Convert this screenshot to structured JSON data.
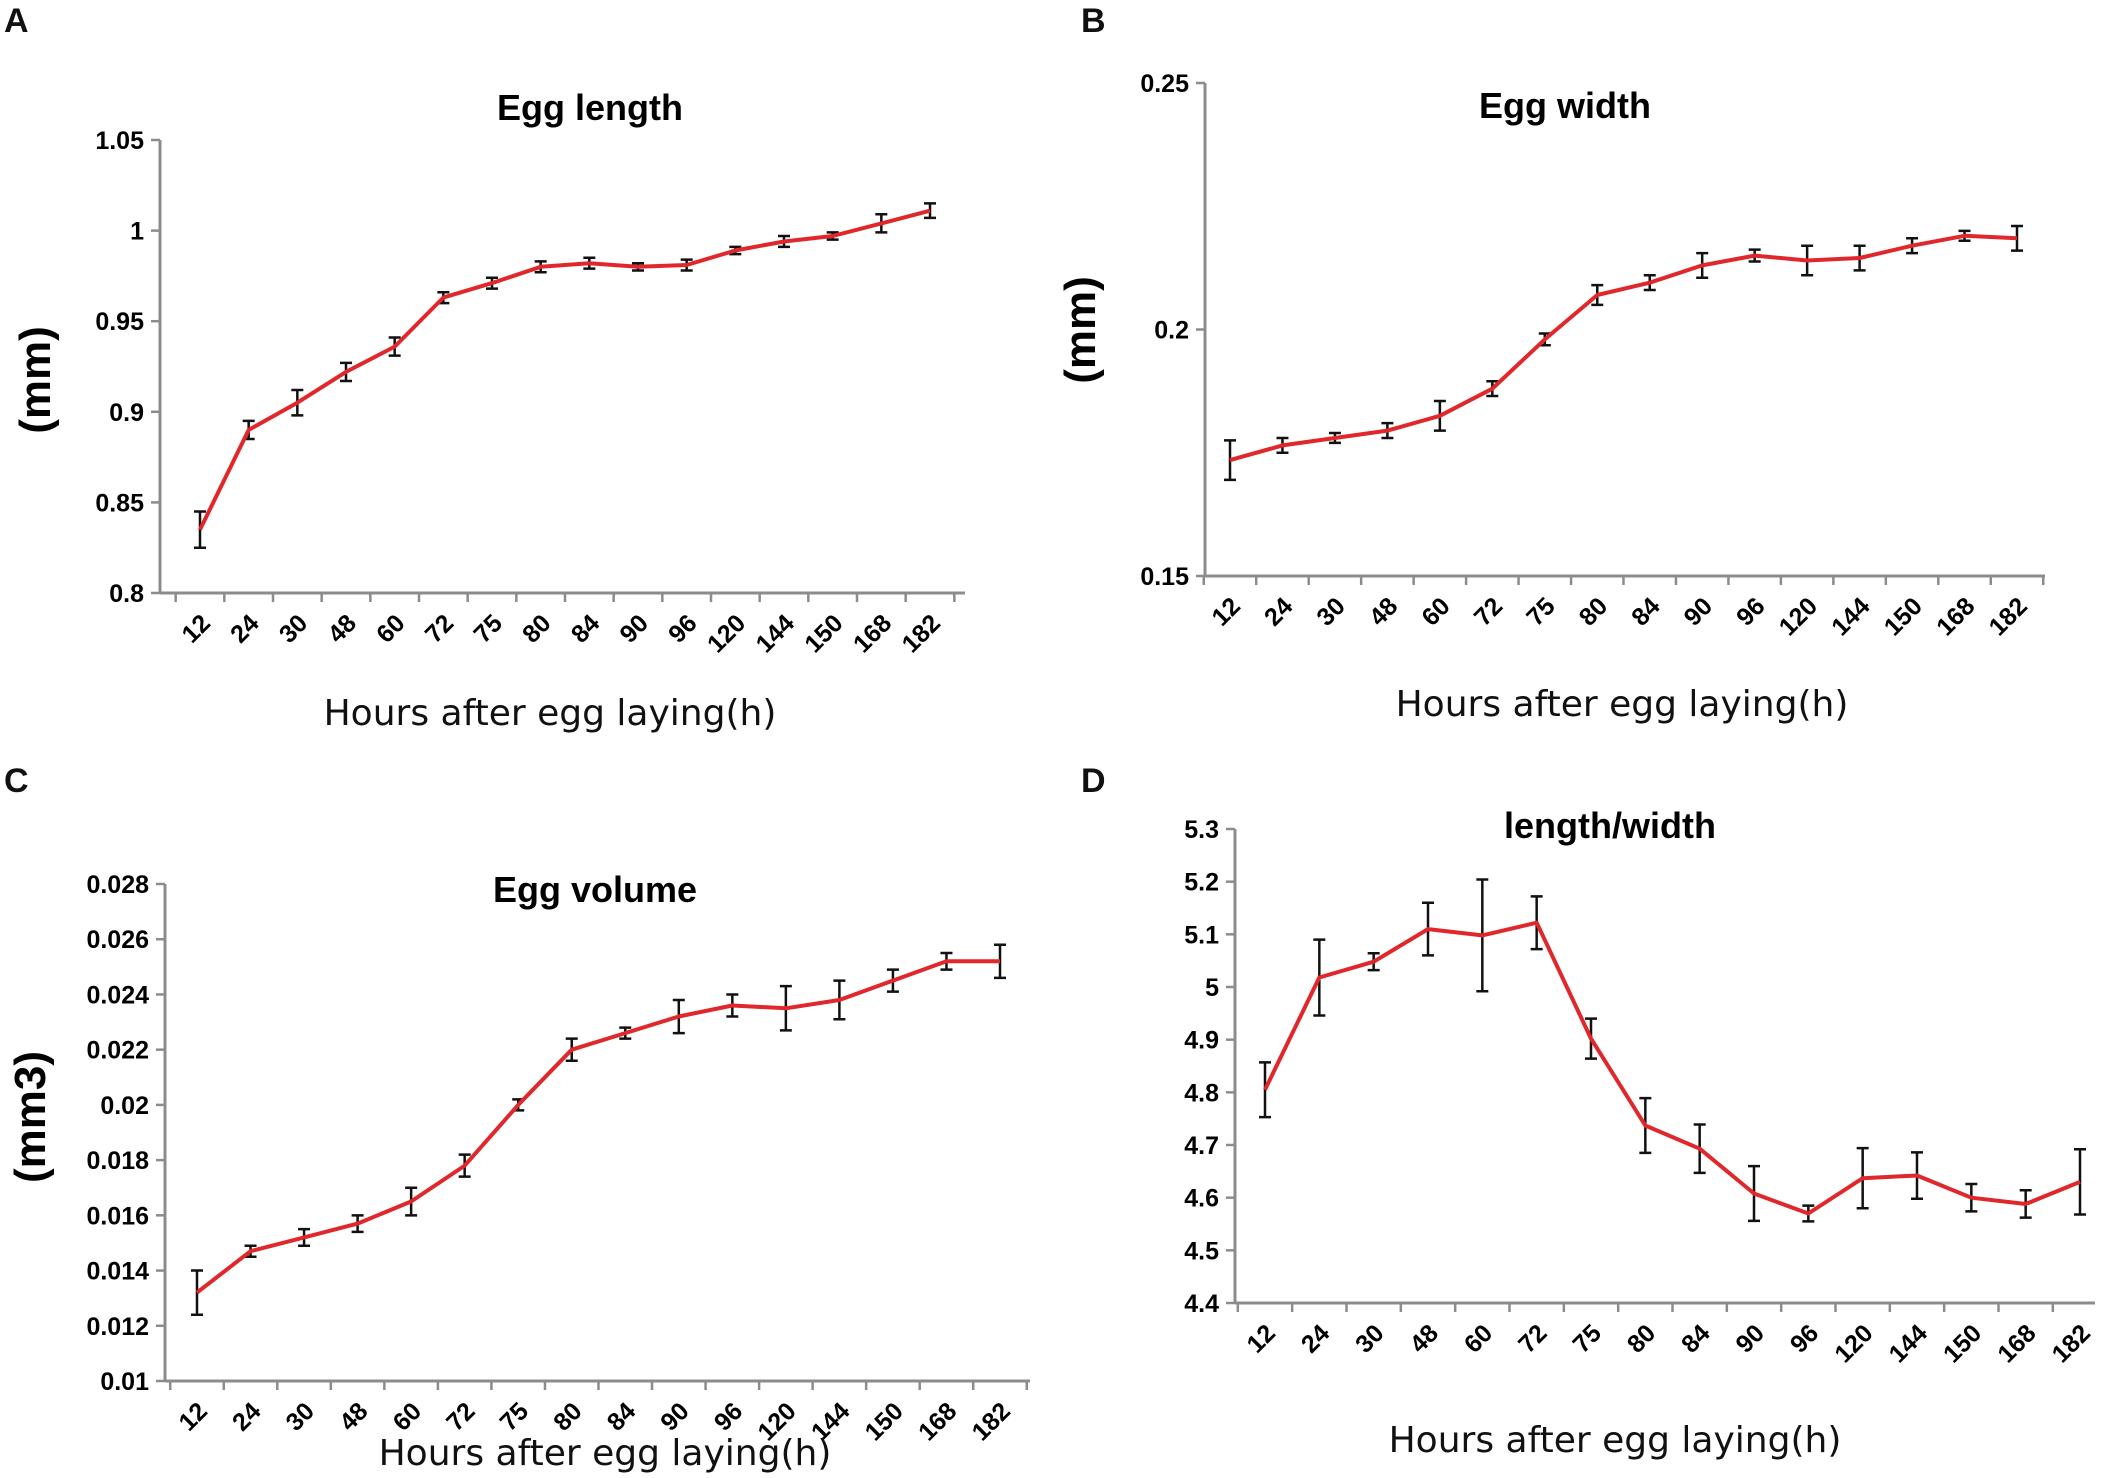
{
  "chart_data": [
    {
      "panel": "A",
      "type": "line",
      "title": "Egg length",
      "ylabel": "(mm)",
      "xlabel": "Hours after egg laying(h)",
      "categories": [
        "12",
        "24",
        "30",
        "48",
        "60",
        "72",
        "75",
        "80",
        "84",
        "90",
        "96",
        "120",
        "144",
        "150",
        "168",
        "182"
      ],
      "values": [
        0.835,
        0.89,
        0.905,
        0.922,
        0.936,
        0.963,
        0.971,
        0.98,
        0.982,
        0.98,
        0.981,
        0.989,
        0.994,
        0.997,
        1.004,
        1.011
      ],
      "errors": [
        0.01,
        0.005,
        0.007,
        0.005,
        0.005,
        0.003,
        0.003,
        0.003,
        0.003,
        0.002,
        0.003,
        0.002,
        0.003,
        0.002,
        0.005,
        0.004
      ],
      "ylim": [
        0.8,
        1.05
      ],
      "yticks": [
        0.8,
        0.85,
        0.9,
        0.95,
        1,
        1.05
      ],
      "ytick_labels": [
        "0.8",
        "0.85",
        "0.9",
        "0.95",
        "1",
        "1.05"
      ],
      "line_color": "#e0282c"
    },
    {
      "panel": "B",
      "type": "line",
      "title": "Egg width",
      "ylabel": "(mm)",
      "xlabel": "Hours after egg laying(h)",
      "categories": [
        "12",
        "24",
        "30",
        "48",
        "60",
        "72",
        "75",
        "80",
        "84",
        "90",
        "96",
        "120",
        "144",
        "150",
        "168",
        "182"
      ],
      "values": [
        0.1735,
        0.1765,
        0.178,
        0.1795,
        0.1825,
        0.188,
        0.198,
        0.207,
        0.2095,
        0.213,
        0.215,
        0.214,
        0.2145,
        0.217,
        0.219,
        0.2185
      ],
      "errors": [
        0.004,
        0.0015,
        0.001,
        0.0015,
        0.003,
        0.0015,
        0.0012,
        0.002,
        0.0015,
        0.0025,
        0.0012,
        0.003,
        0.0025,
        0.0015,
        0.001,
        0.0025
      ],
      "ylim": [
        0.15,
        0.25
      ],
      "yticks": [
        0.15,
        0.2,
        0.25
      ],
      "ytick_labels": [
        "0.15",
        "0.2",
        "0.25"
      ],
      "line_color": "#e0282c"
    },
    {
      "panel": "C",
      "type": "line",
      "title": "Egg volume",
      "ylabel": "(mm3)",
      "xlabel": "Hours after egg laying(h)",
      "categories": [
        "12",
        "24",
        "30",
        "48",
        "60",
        "72",
        "75",
        "80",
        "84",
        "90",
        "96",
        "120",
        "144",
        "150",
        "168",
        "182"
      ],
      "values": [
        0.0132,
        0.0147,
        0.0152,
        0.0157,
        0.0165,
        0.0178,
        0.02,
        0.022,
        0.0226,
        0.0232,
        0.0236,
        0.0235,
        0.0238,
        0.0245,
        0.0252,
        0.0252
      ],
      "errors": [
        0.0008,
        0.0002,
        0.0003,
        0.0003,
        0.0005,
        0.0004,
        0.0002,
        0.0004,
        0.0002,
        0.0006,
        0.0004,
        0.0008,
        0.0007,
        0.0004,
        0.0003,
        0.0006
      ],
      "ylim": [
        0.01,
        0.028
      ],
      "yticks": [
        0.01,
        0.012,
        0.014,
        0.016,
        0.018,
        0.02,
        0.022,
        0.024,
        0.026,
        0.028
      ],
      "ytick_labels": [
        "0.01",
        "0.012",
        "0.014",
        "0.016",
        "0.018",
        "0.02",
        "0.022",
        "0.024",
        "0.026",
        "0.028"
      ],
      "line_color": "#e0282c"
    },
    {
      "panel": "D",
      "type": "line",
      "title": "length/width",
      "ylabel": "",
      "xlabel": "Hours after egg laying(h)",
      "categories": [
        "12",
        "24",
        "30",
        "48",
        "60",
        "72",
        "75",
        "80",
        "84",
        "90",
        "96",
        "120",
        "144",
        "150",
        "168",
        "182"
      ],
      "values": [
        4.805,
        5.018,
        5.048,
        5.11,
        5.098,
        5.122,
        4.902,
        4.737,
        4.693,
        4.608,
        4.57,
        4.637,
        4.642,
        4.6,
        4.588,
        4.63
      ],
      "errors": [
        0.052,
        0.072,
        0.016,
        0.05,
        0.106,
        0.05,
        0.038,
        0.052,
        0.046,
        0.052,
        0.015,
        0.057,
        0.044,
        0.026,
        0.026,
        0.062
      ],
      "ylim": [
        4.4,
        5.3
      ],
      "yticks": [
        4.4,
        4.5,
        4.6,
        4.7,
        4.8,
        4.9,
        5,
        5.1,
        5.2,
        5.3
      ],
      "ytick_labels": [
        "4.4",
        "4.5",
        "4.6",
        "4.7",
        "4.8",
        "4.9",
        "5",
        "5.1",
        "5.2",
        "5.3"
      ],
      "line_color": "#e0282c"
    }
  ]
}
